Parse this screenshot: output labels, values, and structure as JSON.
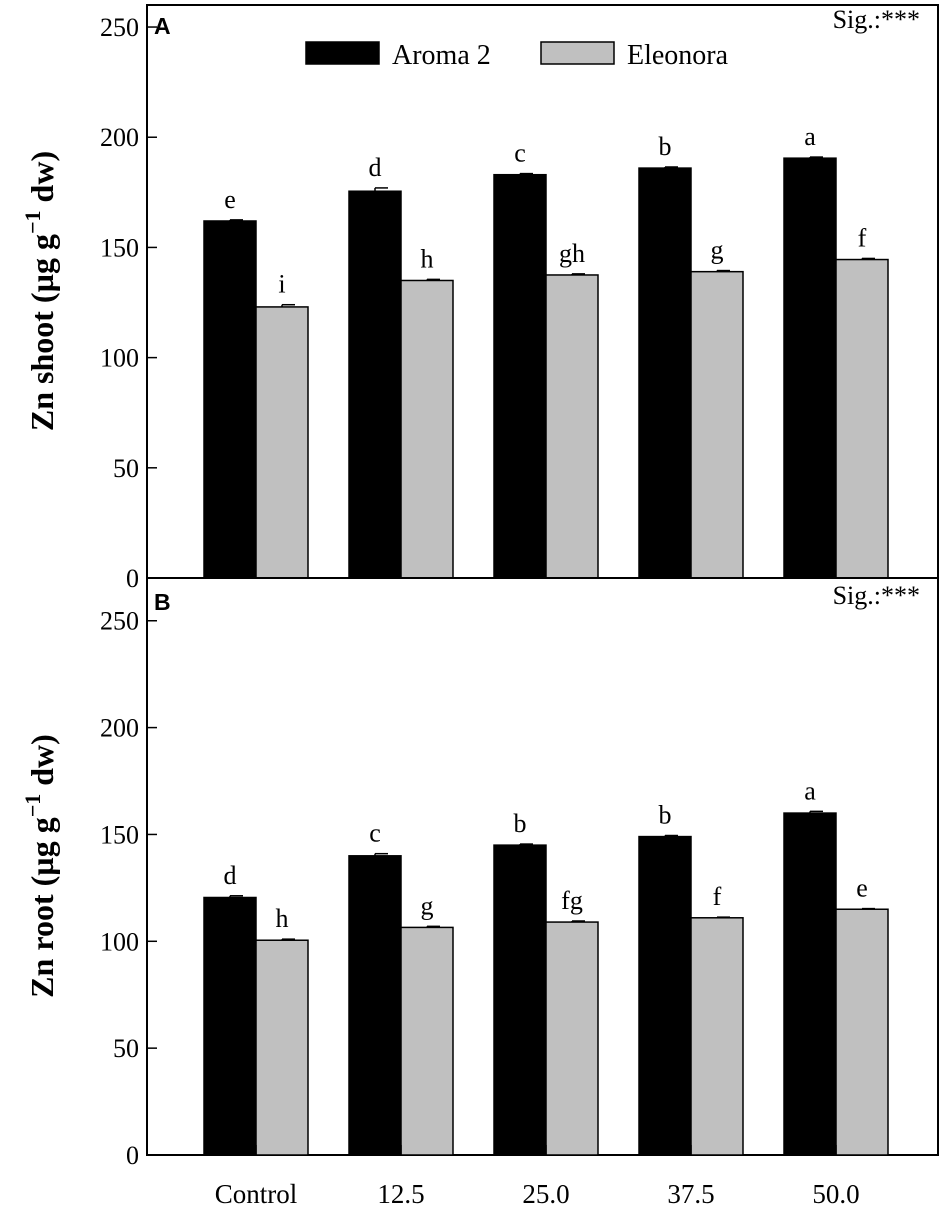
{
  "colors": {
    "aroma": "#000000",
    "eleonora": "#c0c0c0",
    "axis": "#000000"
  },
  "legend": [
    {
      "name": "Aroma 2",
      "color": "#000000"
    },
    {
      "name": "Eleonora",
      "color": "#c0c0c0"
    }
  ],
  "chart_data": [
    {
      "type": "bar",
      "panel_label": "A",
      "significance": "Sig.:***",
      "ylabel": "Zn shoot (µg g⁻¹ dw)",
      "ylabel_parts": {
        "pre": "Zn shoot (µg g",
        "sup": "−1",
        "post": " dw)"
      },
      "ylim": [
        0,
        260
      ],
      "yticks": [
        "0",
        "50",
        "100",
        "150",
        "200",
        "250"
      ],
      "categories": [
        "Control",
        "12.5",
        "25.0",
        "37.5",
        "50.0"
      ],
      "series": [
        {
          "name": "Aroma 2",
          "values": [
            162,
            175.5,
            183,
            186,
            190.5
          ],
          "errors": [
            0.5,
            1.5,
            0.5,
            0.5,
            0.5
          ],
          "letters": [
            "e",
            "d",
            "c",
            "b",
            "a"
          ]
        },
        {
          "name": "Eleonora",
          "values": [
            123,
            135,
            137.5,
            139,
            144.5
          ],
          "errors": [
            1.0,
            0.5,
            0.5,
            0.5,
            0.5
          ],
          "letters": [
            "i",
            "h",
            "gh",
            "g",
            "f"
          ]
        }
      ],
      "legend_position": "top-center"
    },
    {
      "type": "bar",
      "panel_label": "B",
      "significance": "Sig.:***",
      "ylabel": "Zn root (µg g⁻¹ dw)",
      "ylabel_parts": {
        "pre": "Zn root (µg g",
        "sup": "−1",
        "post": " dw)"
      },
      "ylim": [
        0,
        270
      ],
      "yticks": [
        "0",
        "50",
        "100",
        "150",
        "200",
        "250"
      ],
      "categories": [
        "Control",
        "12.5",
        "25.0",
        "37.5",
        "50.0"
      ],
      "series": [
        {
          "name": "Aroma 2",
          "values": [
            120.5,
            140,
            145,
            149,
            160
          ],
          "errors": [
            0.8,
            1.0,
            0.5,
            0.5,
            0.8
          ],
          "letters": [
            "d",
            "c",
            "b",
            "b",
            "a"
          ]
        },
        {
          "name": "Eleonora",
          "values": [
            100.5,
            106.5,
            109,
            111,
            115
          ],
          "errors": [
            0.5,
            0.5,
            0.5,
            0.3,
            0.3
          ],
          "letters": [
            "h",
            "g",
            "fg",
            "f",
            "e"
          ]
        }
      ]
    }
  ]
}
